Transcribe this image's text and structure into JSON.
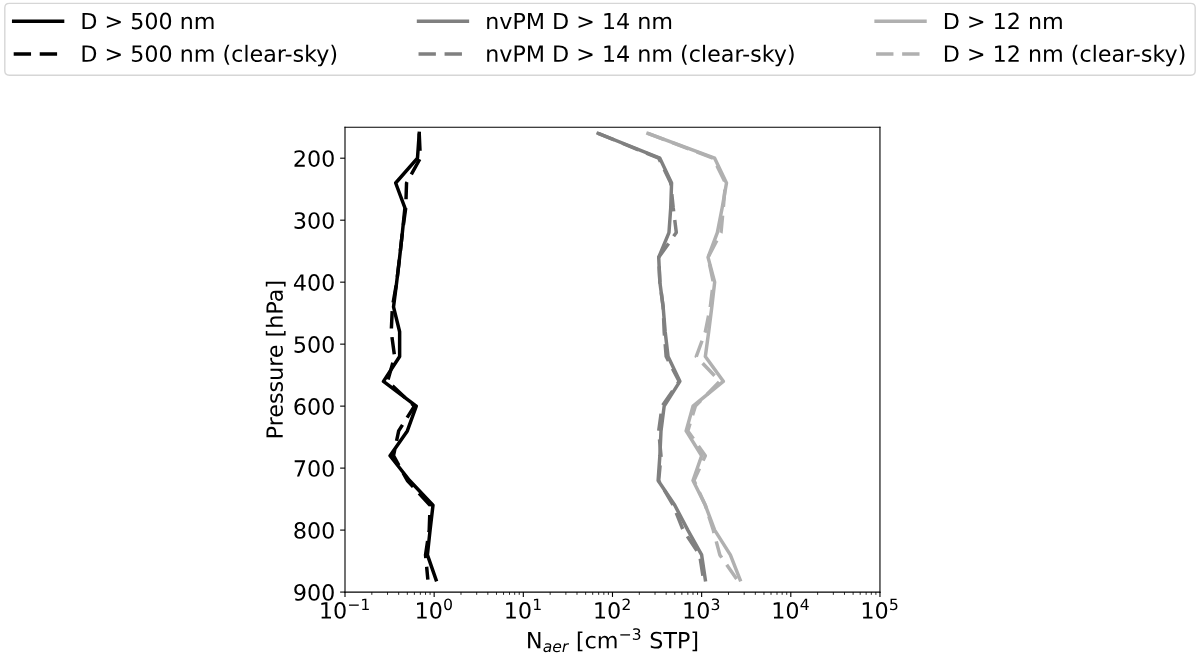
{
  "chart_data": {
    "type": "line",
    "xlabel": "N$_{aer}$ [cm$^{−3}$ STP]",
    "ylabel": "Pressure [hPa]",
    "log": "x",
    "grid": false,
    "legend": "top",
    "marker": "none",
    "xlim": [
      0.1,
      100000
    ],
    "ylim": [
      900,
      150
    ],
    "xticks": [
      {
        "value": 0.1,
        "label": "10$^{−1}$"
      },
      {
        "value": 1,
        "label": "10$^{0}$"
      },
      {
        "value": 10,
        "label": "10$^{1}$"
      },
      {
        "value": 100,
        "label": "10$^{2}$"
      },
      {
        "value": 1000,
        "label": "10$^{3}$"
      },
      {
        "value": 10000,
        "label": "10$^{4}$"
      },
      {
        "value": 100000,
        "label": "10$^{5}$"
      }
    ],
    "yticks": [
      200,
      300,
      400,
      500,
      600,
      700,
      800,
      900
    ],
    "series": [
      {
        "name": "D > 500 nm",
        "color": "#000000",
        "line_style": "solid",
        "x": [
          0.68,
          0.65,
          0.37,
          0.47,
          0.44,
          0.41,
          0.38,
          0.35,
          0.41,
          0.41,
          0.27,
          0.63,
          0.5,
          0.32,
          0.53,
          0.97,
          0.9,
          0.84,
          1.05
        ],
        "values": [
          160,
          200,
          240,
          280,
          320,
          360,
          400,
          440,
          480,
          520,
          560,
          600,
          640,
          680,
          720,
          760,
          800,
          840,
          880
        ]
      },
      {
        "name": "D > 500 nm (clear-sky)",
        "color": "#000000",
        "line_style": "dashed",
        "x": [
          0.68,
          0.7,
          0.49,
          0.48,
          0.44,
          0.41,
          0.38,
          0.34,
          0.33,
          0.36,
          0.3,
          0.6,
          0.4,
          0.35,
          0.5,
          0.9,
          0.88,
          0.8,
          0.85
        ],
        "values": [
          160,
          200,
          240,
          280,
          320,
          360,
          400,
          440,
          480,
          520,
          560,
          600,
          640,
          680,
          720,
          760,
          800,
          840,
          880
        ]
      },
      {
        "name": "nvPM D > 14 nm",
        "color": "#808080",
        "line_style": "solid",
        "x": [
          69,
          340,
          460,
          450,
          430,
          330,
          340,
          370,
          390,
          420,
          570,
          380,
          350,
          340,
          325,
          500,
          700,
          1000,
          1100
        ],
        "values": [
          160,
          200,
          240,
          280,
          320,
          360,
          400,
          440,
          480,
          520,
          560,
          600,
          640,
          680,
          720,
          760,
          800,
          840,
          880
        ]
      },
      {
        "name": "nvPM D > 14 nm (clear-sky)",
        "color": "#808080",
        "line_style": "dashed",
        "x": [
          69,
          330,
          450,
          480,
          520,
          330,
          340,
          370,
          380,
          400,
          560,
          360,
          330,
          350,
          330,
          480,
          620,
          950,
          1050
        ],
        "values": [
          160,
          200,
          240,
          280,
          320,
          360,
          400,
          440,
          480,
          520,
          560,
          600,
          640,
          680,
          720,
          760,
          800,
          840,
          880
        ]
      },
      {
        "name": "D > 12 nm",
        "color": "#b0b0b0",
        "line_style": "solid",
        "x": [
          250,
          1400,
          1900,
          1700,
          1500,
          1180,
          1400,
          1300,
          1200,
          1100,
          1750,
          800,
          670,
          1000,
          800,
          1100,
          1400,
          2100,
          2700
        ],
        "values": [
          160,
          200,
          240,
          280,
          320,
          360,
          400,
          440,
          480,
          520,
          560,
          600,
          640,
          680,
          720,
          760,
          800,
          840,
          880
        ]
      },
      {
        "name": "D > 12 nm (clear-sky)",
        "color": "#b0b0b0",
        "line_style": "dashed",
        "x": [
          250,
          1350,
          1850,
          1750,
          1650,
          1180,
          1350,
          1250,
          1100,
          870,
          1600,
          850,
          700,
          1100,
          820,
          1100,
          1350,
          1600,
          2500
        ],
        "values": [
          160,
          200,
          240,
          280,
          320,
          360,
          400,
          440,
          480,
          520,
          560,
          600,
          640,
          680,
          720,
          760,
          800,
          840,
          880
        ]
      }
    ]
  }
}
